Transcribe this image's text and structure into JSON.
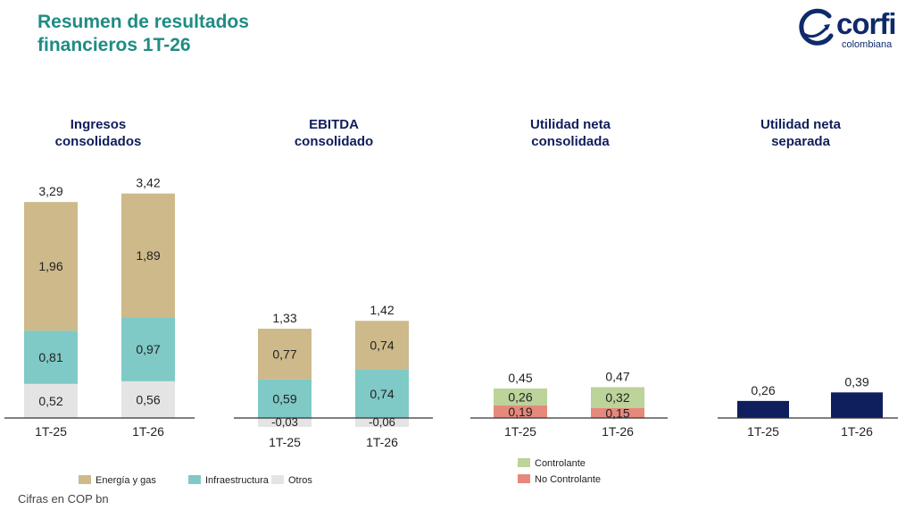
{
  "title_lines": [
    "Resumen de resultados",
    "financieros 1T-26"
  ],
  "logo": {
    "main": "corfi",
    "sub": "colombiana"
  },
  "footnote": "Cifras en COP bn",
  "colors": {
    "energia": "#cdb98a",
    "infra": "#7fc9c6",
    "otros": "#e4e4e4",
    "controlante": "#bcd39a",
    "no_controlante": "#e6887c",
    "separada": "#0f1e5c",
    "title": "#1e8c84",
    "panel_title": "#0f1e5c"
  },
  "chart_data": [
    {
      "type": "bar",
      "stacked": true,
      "title": "Ingresos consolidados",
      "title_lines": [
        "Ingresos",
        "consolidados"
      ],
      "categories": [
        "1T-25",
        "1T-26"
      ],
      "series": [
        {
          "name": "Otros",
          "values": [
            0.52,
            0.56
          ],
          "labels": [
            "0,52",
            "0,56"
          ],
          "color_key": "otros"
        },
        {
          "name": "Infraestructura",
          "values": [
            0.81,
            0.97
          ],
          "labels": [
            "0,81",
            "0,97"
          ],
          "color_key": "infra"
        },
        {
          "name": "Energía y gas",
          "values": [
            1.96,
            1.89
          ],
          "labels": [
            "1,96",
            "1,89"
          ],
          "color_key": "energia"
        }
      ],
      "totals": [
        3.29,
        3.42
      ],
      "total_labels": [
        "3,29",
        "3,42"
      ]
    },
    {
      "type": "bar",
      "stacked": true,
      "title": "EBITDA consolidado",
      "title_lines": [
        "EBITDA",
        "consolidado"
      ],
      "categories": [
        "1T-25",
        "1T-26"
      ],
      "series": [
        {
          "name": "Otros",
          "values": [
            -0.03,
            -0.06
          ],
          "labels": [
            "-0,03",
            "-0,06"
          ],
          "color_key": "otros"
        },
        {
          "name": "Infraestructura",
          "values": [
            0.59,
            0.74
          ],
          "labels": [
            "0,59",
            "0,74"
          ],
          "color_key": "infra"
        },
        {
          "name": "Energía y gas",
          "values": [
            0.77,
            0.74
          ],
          "labels": [
            "0,77",
            "0,74"
          ],
          "color_key": "energia"
        }
      ],
      "totals": [
        1.33,
        1.42
      ],
      "total_labels": [
        "1,33",
        "1,42"
      ]
    },
    {
      "type": "bar",
      "stacked": true,
      "title": "Utilidad neta consolidada",
      "title_lines": [
        "Utilidad neta",
        "consolidada"
      ],
      "categories": [
        "1T-25",
        "1T-26"
      ],
      "series": [
        {
          "name": "No Controlante",
          "values": [
            0.19,
            0.15
          ],
          "labels": [
            "0,19",
            "0,15"
          ],
          "color_key": "no_controlante"
        },
        {
          "name": "Controlante",
          "values": [
            0.26,
            0.32
          ],
          "labels": [
            "0,26",
            "0,32"
          ],
          "color_key": "controlante"
        }
      ],
      "totals": [
        0.45,
        0.47
      ],
      "total_labels": [
        "0,45",
        "0,47"
      ]
    },
    {
      "type": "bar",
      "stacked": false,
      "title": "Utilidad neta separada",
      "title_lines": [
        "Utilidad neta",
        "separada"
      ],
      "categories": [
        "1T-25",
        "1T-26"
      ],
      "series": [
        {
          "values": [
            0.26,
            0.39
          ],
          "labels": [
            "0,26",
            "0,39"
          ],
          "color_key": "separada"
        }
      ]
    }
  ],
  "legends": [
    {
      "position": "bottom-left",
      "items": [
        {
          "label": "Energía y gas",
          "color_key": "energia"
        },
        {
          "label": "Infraestructura",
          "color_key": "infra"
        },
        {
          "label": "Otros",
          "color_key": "otros"
        }
      ]
    },
    {
      "position": "bottom-center-right",
      "items": [
        {
          "label": "Controlante",
          "color_key": "controlante"
        },
        {
          "label": "No Controlante",
          "color_key": "no_controlante"
        }
      ]
    }
  ]
}
